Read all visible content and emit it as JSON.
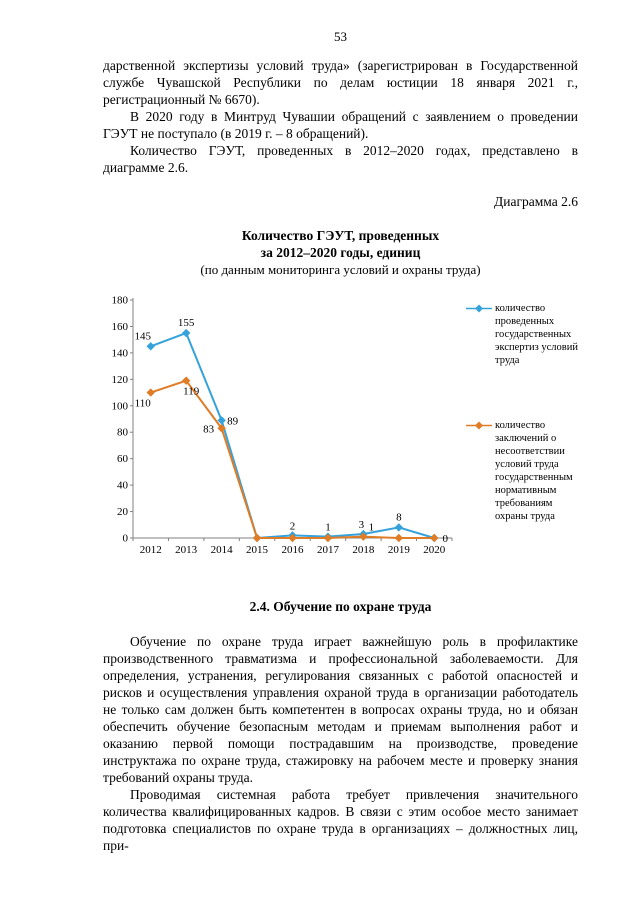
{
  "page": {
    "number": "53"
  },
  "paragraphs": {
    "p1": "дарственной экспертизы условий труда» (зарегистрирован в Государственной службе Чувашской Республики по делам юстиции 18 января 2021 г., регистрационный № 6670).",
    "p2": "В 2020 году в Минтруд Чувашии обращений с заявлением о проведении ГЭУТ не поступало (в 2019 г. – 8 обращений).",
    "p3": "Количество ГЭУТ, проведенных в 2012–2020 годах, представлено в диаграмме 2.6.",
    "p4": "Обучение по охране труда играет важнейшую роль в профилактике производственного травматизма и профессиональной заболеваемости. Для определения, устранения, регулирования связанных с работой опасностей и рисков и осуществления управления охраной труда в организации работодатель не только сам должен быть компетентен в вопросах охраны труда, но и обязан обеспечить обучение безопасным методам и приемам выполнения работ и оказанию первой помощи пострадавшим на производстве, проведение инструктажа по охране труда, стажировку на рабочем месте и проверку знания требований охраны труда.",
    "p5": "Проводимая системная работа требует привлечения значительного количества квалифицированных кадров. В связи с этим особое место занимает подготовка специалистов по охране труда в организациях – должностных лиц, при-"
  },
  "figure": {
    "caption": "Диаграмма 2.6",
    "title_line1": "Количество ГЭУТ, проведенных",
    "title_line2": "за 2012–2020 годы, единиц",
    "subtitle": "(по данным мониторинга условий и охраны труда)"
  },
  "section": {
    "heading": "2.4. Обучение по охране труда"
  },
  "chart_data": {
    "type": "line",
    "title": "Количество ГЭУТ, проведенных за 2012–2020 годы, единиц",
    "xlabel": "",
    "ylabel": "",
    "categories": [
      "2012",
      "2013",
      "2014",
      "2015",
      "2016",
      "2017",
      "2018",
      "2019",
      "2020"
    ],
    "series": [
      {
        "name": "количество проведенных государственных экспертиз условий труда",
        "color": "#36A2DB",
        "values": [
          145,
          155,
          89,
          0,
          2,
          1,
          3,
          8,
          0
        ],
        "labels": [
          "145",
          "155",
          "89",
          "",
          "2",
          "1",
          "3",
          "8",
          ""
        ],
        "label_offsets": [
          [
            -8,
            -7
          ],
          [
            0,
            -7
          ],
          [
            11,
            4
          ],
          null,
          [
            0,
            -6
          ],
          [
            0,
            -6
          ],
          [
            -2,
            -6
          ],
          [
            0,
            -7
          ],
          null
        ]
      },
      {
        "name": "количество заключений о несоответствии условий труда государственным нормативным требованиям охраны труда",
        "color": "#E07C26",
        "values": [
          110,
          119,
          83,
          0,
          0,
          0,
          1,
          0,
          0
        ],
        "labels": [
          "110",
          "119",
          "83",
          "",
          "",
          "",
          "1",
          "",
          "0"
        ],
        "label_offsets": [
          [
            -8,
            14
          ],
          [
            5,
            14
          ],
          [
            -13,
            4
          ],
          null,
          null,
          null,
          [
            8,
            -6
          ],
          null,
          [
            11,
            4
          ]
        ]
      }
    ],
    "ylim": [
      0,
      180
    ],
    "ytick": 20,
    "grid": false,
    "legend_position": "right",
    "axis_color": "#808080"
  }
}
